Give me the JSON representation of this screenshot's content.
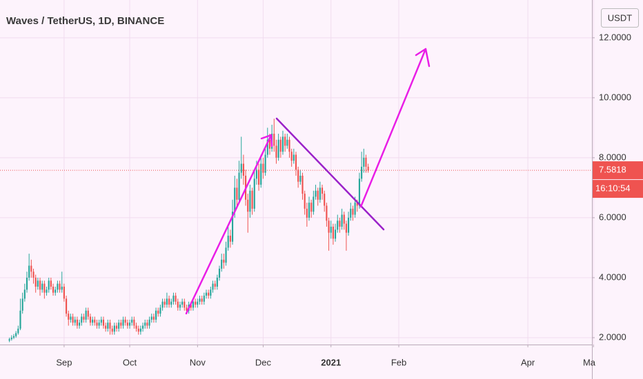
{
  "chart_data": {
    "type": "candlestick",
    "title": "Waves / TetherUS, 1D, BINANCE",
    "currency": "USDT",
    "last_price": 7.5818,
    "countdown": "16:10:54",
    "up_color": "#26a69a",
    "down_color": "#ef5350",
    "grid": true,
    "xlim": [
      1.7,
      272.3
    ],
    "xticks": [
      {
        "value": 31,
        "label": "Sep"
      },
      {
        "value": 61,
        "label": "Oct"
      },
      {
        "value": 92,
        "label": "Nov"
      },
      {
        "value": 122,
        "label": "Dec"
      },
      {
        "value": 153,
        "label": "2021"
      },
      {
        "value": 184,
        "label": "Feb"
      },
      {
        "value": 243,
        "label": "Apr"
      },
      {
        "value": 273,
        "label": "Ma"
      }
    ],
    "ylim": [
      1.77,
      13.26
    ],
    "yticks": [
      {
        "value": 2,
        "label": "2.0000"
      },
      {
        "value": 4,
        "label": "4.0000"
      },
      {
        "value": 6,
        "label": "6.0000"
      },
      {
        "value": 8,
        "label": "8.0000"
      },
      {
        "value": 10,
        "label": "10.0000"
      },
      {
        "value": 12,
        "label": "12.0000"
      }
    ],
    "x": [
      6,
      7,
      8,
      9,
      10,
      11,
      12,
      13,
      14,
      15,
      16,
      17,
      18,
      19,
      20,
      21,
      22,
      23,
      24,
      25,
      26,
      27,
      28,
      29,
      30,
      31,
      32,
      33,
      34,
      35,
      36,
      37,
      38,
      39,
      40,
      41,
      42,
      43,
      44,
      45,
      46,
      47,
      48,
      49,
      50,
      51,
      52,
      53,
      54,
      55,
      56,
      57,
      58,
      59,
      60,
      61,
      62,
      63,
      64,
      65,
      66,
      67,
      68,
      69,
      70,
      71,
      72,
      73,
      74,
      75,
      76,
      77,
      78,
      79,
      80,
      81,
      82,
      83,
      84,
      85,
      86,
      87,
      88,
      89,
      90,
      91,
      92,
      93,
      94,
      95,
      96,
      97,
      98,
      99,
      100,
      101,
      102,
      103,
      104,
      105,
      106,
      107,
      108,
      109,
      110,
      111,
      112,
      113,
      114,
      115,
      116,
      117,
      118,
      119,
      120,
      121,
      122,
      123,
      124,
      125,
      126,
      127,
      128,
      129,
      130,
      131,
      132,
      133,
      134,
      135,
      136,
      137,
      138,
      139,
      140,
      141,
      142,
      143,
      144,
      145,
      146,
      147,
      148,
      149,
      150,
      151,
      152,
      153,
      154,
      155,
      156,
      157,
      158,
      159,
      160,
      161,
      162,
      163,
      164,
      165,
      166,
      167,
      168,
      169,
      170
    ],
    "ohlc": [
      [
        1.9,
        2.0,
        1.85,
        1.95
      ],
      [
        1.95,
        2.08,
        1.9,
        2.0
      ],
      [
        2.0,
        2.12,
        1.95,
        2.05
      ],
      [
        2.05,
        2.22,
        2.0,
        2.15
      ],
      [
        2.15,
        2.4,
        2.1,
        2.3
      ],
      [
        2.3,
        3.3,
        2.25,
        2.9
      ],
      [
        2.9,
        3.5,
        2.8,
        3.3
      ],
      [
        3.3,
        3.8,
        3.2,
        3.6
      ],
      [
        3.6,
        4.2,
        3.5,
        4.0
      ],
      [
        4.0,
        4.8,
        3.9,
        4.4
      ],
      [
        4.4,
        4.6,
        4.0,
        4.2
      ],
      [
        4.2,
        4.3,
        3.8,
        4.0
      ],
      [
        4.0,
        4.1,
        3.5,
        3.7
      ],
      [
        3.7,
        4.0,
        3.6,
        3.9
      ],
      [
        3.9,
        4.0,
        3.4,
        3.6
      ],
      [
        3.6,
        3.9,
        3.5,
        3.8
      ],
      [
        3.8,
        3.9,
        3.3,
        3.5
      ],
      [
        3.5,
        3.7,
        3.4,
        3.6
      ],
      [
        3.6,
        4.0,
        3.5,
        3.9
      ],
      [
        3.9,
        4.0,
        3.6,
        3.7
      ],
      [
        3.7,
        3.8,
        3.4,
        3.5
      ],
      [
        3.5,
        3.7,
        3.4,
        3.6
      ],
      [
        3.6,
        3.9,
        3.5,
        3.8
      ],
      [
        3.8,
        3.9,
        3.5,
        3.6
      ],
      [
        3.6,
        4.2,
        3.5,
        3.7
      ],
      [
        3.7,
        3.8,
        3.2,
        3.3
      ],
      [
        3.3,
        3.4,
        2.7,
        2.8
      ],
      [
        2.8,
        2.9,
        2.4,
        2.6
      ],
      [
        2.6,
        2.8,
        2.5,
        2.7
      ],
      [
        2.7,
        2.8,
        2.4,
        2.5
      ],
      [
        2.5,
        2.7,
        2.4,
        2.6
      ],
      [
        2.6,
        2.7,
        2.3,
        2.4
      ],
      [
        2.4,
        2.6,
        2.3,
        2.5
      ],
      [
        2.5,
        2.8,
        2.4,
        2.7
      ],
      [
        2.7,
        2.8,
        2.5,
        2.6
      ],
      [
        2.6,
        3.0,
        2.5,
        2.9
      ],
      [
        2.9,
        3.0,
        2.6,
        2.7
      ],
      [
        2.7,
        2.8,
        2.4,
        2.5
      ],
      [
        2.5,
        2.7,
        2.4,
        2.6
      ],
      [
        2.6,
        2.7,
        2.4,
        2.5
      ],
      [
        2.5,
        2.6,
        2.3,
        2.4
      ],
      [
        2.4,
        2.6,
        2.3,
        2.5
      ],
      [
        2.5,
        2.7,
        2.4,
        2.6
      ],
      [
        2.6,
        2.7,
        2.3,
        2.4
      ],
      [
        2.4,
        2.5,
        2.2,
        2.3
      ],
      [
        2.3,
        2.6,
        2.2,
        2.5
      ],
      [
        2.5,
        2.6,
        2.1,
        2.3
      ],
      [
        2.3,
        2.4,
        2.1,
        2.2
      ],
      [
        2.2,
        2.5,
        2.1,
        2.4
      ],
      [
        2.4,
        2.5,
        2.2,
        2.3
      ],
      [
        2.3,
        2.6,
        2.2,
        2.5
      ],
      [
        2.5,
        2.6,
        2.3,
        2.4
      ],
      [
        2.4,
        2.7,
        2.3,
        2.6
      ],
      [
        2.6,
        2.7,
        2.4,
        2.5
      ],
      [
        2.5,
        2.6,
        2.3,
        2.4
      ],
      [
        2.4,
        2.6,
        2.3,
        2.5
      ],
      [
        2.5,
        2.7,
        2.4,
        2.6
      ],
      [
        2.6,
        2.7,
        2.3,
        2.4
      ],
      [
        2.4,
        2.5,
        2.2,
        2.3
      ],
      [
        2.3,
        2.4,
        2.1,
        2.2
      ],
      [
        2.2,
        2.4,
        2.1,
        2.3
      ],
      [
        2.3,
        2.5,
        2.2,
        2.4
      ],
      [
        2.4,
        2.6,
        2.3,
        2.5
      ],
      [
        2.5,
        2.6,
        2.3,
        2.4
      ],
      [
        2.4,
        2.7,
        2.3,
        2.6
      ],
      [
        2.6,
        2.8,
        2.5,
        2.7
      ],
      [
        2.7,
        2.8,
        2.5,
        2.6
      ],
      [
        2.6,
        3.0,
        2.5,
        2.9
      ],
      [
        2.9,
        3.0,
        2.7,
        2.8
      ],
      [
        2.8,
        3.1,
        2.7,
        3.0
      ],
      [
        3.0,
        3.3,
        2.9,
        3.2
      ],
      [
        3.2,
        3.3,
        3.0,
        3.1
      ],
      [
        3.1,
        3.5,
        3.0,
        3.3
      ],
      [
        3.3,
        3.4,
        3.0,
        3.1
      ],
      [
        3.1,
        3.3,
        3.0,
        3.2
      ],
      [
        3.2,
        3.5,
        3.1,
        3.4
      ],
      [
        3.4,
        3.5,
        3.1,
        3.2
      ],
      [
        3.2,
        3.3,
        2.9,
        3.0
      ],
      [
        3.0,
        3.2,
        2.9,
        3.1
      ],
      [
        3.1,
        3.3,
        3.0,
        3.2
      ],
      [
        3.2,
        3.3,
        2.9,
        3.0
      ],
      [
        3.0,
        3.1,
        2.8,
        2.9
      ],
      [
        2.9,
        3.2,
        2.8,
        3.1
      ],
      [
        3.1,
        3.2,
        2.9,
        3.0
      ],
      [
        3.0,
        3.3,
        2.9,
        3.2
      ],
      [
        3.2,
        3.3,
        3.0,
        3.1
      ],
      [
        3.1,
        3.3,
        3.0,
        3.2
      ],
      [
        3.2,
        3.4,
        3.1,
        3.3
      ],
      [
        3.3,
        3.4,
        3.1,
        3.2
      ],
      [
        3.2,
        3.5,
        3.1,
        3.4
      ],
      [
        3.4,
        3.6,
        3.3,
        3.5
      ],
      [
        3.5,
        3.6,
        3.3,
        3.4
      ],
      [
        3.4,
        3.7,
        3.3,
        3.6
      ],
      [
        3.6,
        3.9,
        3.5,
        3.8
      ],
      [
        3.8,
        3.9,
        3.6,
        3.7
      ],
      [
        3.7,
        4.1,
        3.6,
        4.0
      ],
      [
        4.0,
        4.4,
        3.9,
        4.3
      ],
      [
        4.3,
        4.8,
        4.2,
        4.6
      ],
      [
        4.6,
        4.8,
        4.3,
        4.5
      ],
      [
        4.5,
        5.2,
        4.4,
        5.0
      ],
      [
        5.0,
        5.7,
        4.9,
        5.4
      ],
      [
        5.4,
        5.6,
        5.0,
        5.2
      ],
      [
        5.2,
        6.6,
        5.1,
        6.2
      ],
      [
        6.2,
        7.4,
        6.0,
        7.0
      ],
      [
        7.0,
        7.3,
        6.3,
        6.6
      ],
      [
        6.6,
        7.9,
        6.5,
        7.5
      ],
      [
        7.5,
        8.7,
        7.3,
        7.8
      ],
      [
        7.8,
        8.1,
        7.1,
        7.4
      ],
      [
        7.4,
        7.6,
        6.4,
        6.6
      ],
      [
        6.6,
        6.8,
        5.5,
        6.2
      ],
      [
        6.2,
        7.1,
        6.0,
        6.9
      ],
      [
        6.9,
        7.0,
        6.1,
        6.3
      ],
      [
        6.3,
        7.6,
        6.2,
        7.3
      ],
      [
        7.3,
        7.9,
        7.1,
        7.6
      ],
      [
        7.6,
        7.8,
        6.9,
        7.1
      ],
      [
        7.1,
        8.1,
        7.0,
        7.8
      ],
      [
        7.8,
        8.0,
        7.3,
        7.5
      ],
      [
        7.5,
        8.3,
        7.4,
        8.1
      ],
      [
        8.1,
        9.0,
        8.0,
        8.6
      ],
      [
        8.6,
        8.8,
        8.1,
        8.3
      ],
      [
        8.3,
        9.1,
        8.2,
        8.8
      ],
      [
        8.8,
        9.3,
        8.2,
        8.4
      ],
      [
        8.4,
        8.6,
        7.8,
        8.0
      ],
      [
        8.0,
        8.8,
        7.9,
        8.6
      ],
      [
        8.6,
        8.7,
        8.0,
        8.2
      ],
      [
        8.2,
        8.9,
        8.1,
        8.7
      ],
      [
        8.7,
        8.8,
        8.2,
        8.4
      ],
      [
        8.4,
        8.8,
        8.3,
        8.6
      ],
      [
        8.6,
        8.7,
        8.0,
        8.2
      ],
      [
        8.2,
        8.3,
        7.7,
        7.9
      ],
      [
        7.9,
        8.3,
        7.8,
        8.1
      ],
      [
        8.1,
        8.2,
        7.4,
        7.6
      ],
      [
        7.6,
        7.7,
        7.0,
        7.2
      ],
      [
        7.2,
        7.6,
        7.1,
        7.4
      ],
      [
        7.4,
        7.5,
        6.6,
        6.8
      ],
      [
        6.8,
        6.9,
        6.1,
        6.3
      ],
      [
        6.3,
        6.5,
        5.7,
        6.0
      ],
      [
        6.0,
        6.7,
        5.9,
        6.5
      ],
      [
        6.5,
        6.6,
        6.0,
        6.2
      ],
      [
        6.2,
        6.9,
        6.1,
        6.7
      ],
      [
        6.7,
        7.1,
        6.6,
        6.9
      ],
      [
        6.9,
        7.0,
        6.4,
        6.6
      ],
      [
        6.6,
        7.2,
        6.5,
        7.0
      ],
      [
        7.0,
        7.1,
        6.6,
        6.8
      ],
      [
        6.8,
        6.9,
        6.2,
        6.4
      ],
      [
        6.4,
        6.5,
        5.7,
        5.9
      ],
      [
        5.9,
        6.0,
        4.9,
        5.5
      ],
      [
        5.5,
        5.9,
        5.3,
        5.7
      ],
      [
        5.7,
        5.8,
        5.1,
        5.3
      ],
      [
        5.3,
        5.8,
        5.2,
        5.6
      ],
      [
        5.6,
        6.1,
        5.5,
        5.9
      ],
      [
        5.9,
        6.0,
        5.5,
        5.7
      ],
      [
        5.7,
        6.3,
        5.6,
        6.1
      ],
      [
        6.1,
        6.2,
        5.6,
        5.8
      ],
      [
        5.8,
        5.9,
        4.9,
        5.5
      ],
      [
        5.5,
        6.2,
        5.4,
        6.0
      ],
      [
        6.0,
        6.5,
        5.9,
        6.3
      ],
      [
        6.3,
        6.4,
        5.9,
        6.1
      ],
      [
        6.1,
        6.7,
        6.0,
        6.5
      ],
      [
        6.5,
        6.6,
        6.2,
        6.4
      ],
      [
        6.4,
        7.5,
        6.3,
        7.3
      ],
      [
        7.3,
        8.2,
        7.2,
        7.7
      ],
      [
        7.7,
        8.3,
        7.5,
        8.0
      ],
      [
        8.0,
        8.1,
        7.5,
        7.7
      ],
      [
        7.7,
        7.8,
        7.5,
        7.58
      ]
    ]
  }
}
